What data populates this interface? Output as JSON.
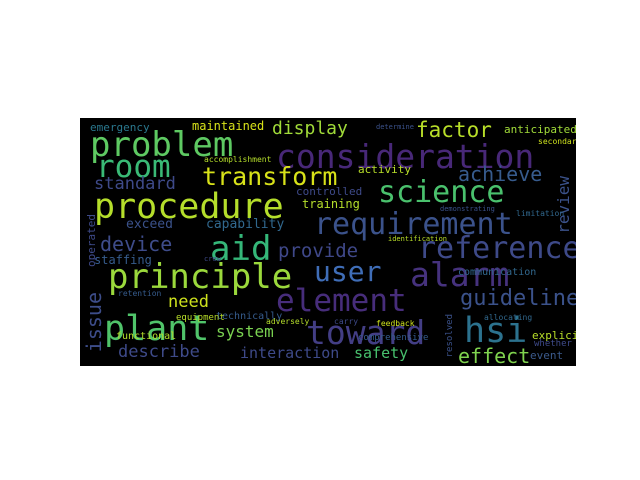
{
  "colors": {
    "background": "#000000",
    "page": "#ffffff"
  },
  "words": {
    "consideration": "consideration",
    "problem": "problem",
    "room": "room",
    "transform": "transform",
    "procedure": "procedure",
    "science": "science",
    "requirement": "requirement",
    "aid": "aid",
    "reference": "reference",
    "principle": "principle",
    "user": "user",
    "alarm": "alarm",
    "element": "element",
    "plant": "plant",
    "toward": "toward",
    "hsi": "hsi",
    "guideline": "guideline",
    "display": "display",
    "factor": "factor",
    "achieve": "achieve",
    "review": "review",
    "standard": "standard",
    "device": "device",
    "provide": "provide",
    "issue": "issue",
    "need": "need",
    "system": "system",
    "describe": "describe",
    "interaction": "interaction",
    "safety": "safety",
    "effect": "effect",
    "event": "event",
    "emergency": "emergency",
    "maintained": "maintained",
    "anticipated": "anticipated",
    "exceed": "exceed",
    "capability": "capability",
    "training": "training",
    "controlled": "controlled",
    "activity": "activity",
    "staffing": "staffing",
    "operated": "operated",
    "communication": "communication",
    "explicit": "explicit",
    "technically": "technically",
    "functional": "functional",
    "equipment": "equipment",
    "comprehensive": "comprehensive",
    "feedback": "feedback",
    "carry": "carry",
    "whether": "whether",
    "resolved": "resolved",
    "secondary": "secondary",
    "limitation": "limitation",
    "accomplishment": "accomplishment",
    "identification": "identification",
    "allocating": "allocating",
    "demonstrating": "demonstrating",
    "determine": "determine",
    "adversely": "adversely",
    "retention": "retention",
    "crew": "crew"
  }
}
